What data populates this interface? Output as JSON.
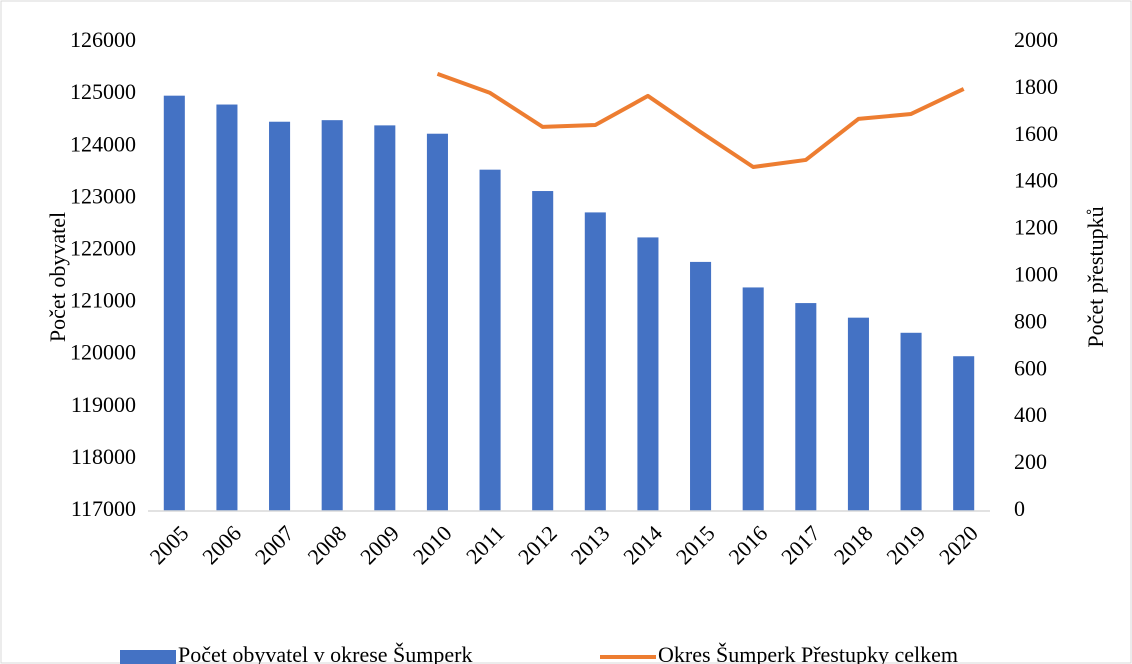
{
  "chart_data": {
    "type": "bar_line",
    "categories": [
      "2005",
      "2006",
      "2007",
      "2008",
      "2009",
      "2010",
      "2011",
      "2012",
      "2013",
      "2014",
      "2015",
      "2016",
      "2017",
      "2018",
      "2019",
      "2020"
    ],
    "series": [
      {
        "name": "Počet obyvatel v okrese Šumperk",
        "type": "bar",
        "color": "#4472c4",
        "values": [
          124970,
          124800,
          124470,
          124500,
          124400,
          124240,
          123550,
          123140,
          122730,
          122250,
          121780,
          121290,
          120990,
          120710,
          120420,
          119970
        ]
      },
      {
        "name": "Okres Šumperk Přestupky celkem",
        "type": "line",
        "color": "#ed7d31",
        "axis": "y2",
        "values": [
          null,
          null,
          null,
          null,
          null,
          1864,
          1783,
          1638,
          1646,
          1770,
          1616,
          1467,
          1497,
          1672,
          1693,
          1800
        ]
      }
    ],
    "ylabel": "Počet obyvatel",
    "y2label": "Počet přestupků",
    "ylim": [
      117000,
      126000
    ],
    "yticks": [
      117000,
      118000,
      119000,
      120000,
      121000,
      122000,
      123000,
      124000,
      125000,
      126000
    ],
    "y2lim": [
      0,
      2000
    ],
    "y2ticks": [
      0,
      200,
      400,
      600,
      800,
      1000,
      1200,
      1400,
      1600,
      1800,
      2000
    ],
    "grid": false,
    "legend": "bottom"
  }
}
